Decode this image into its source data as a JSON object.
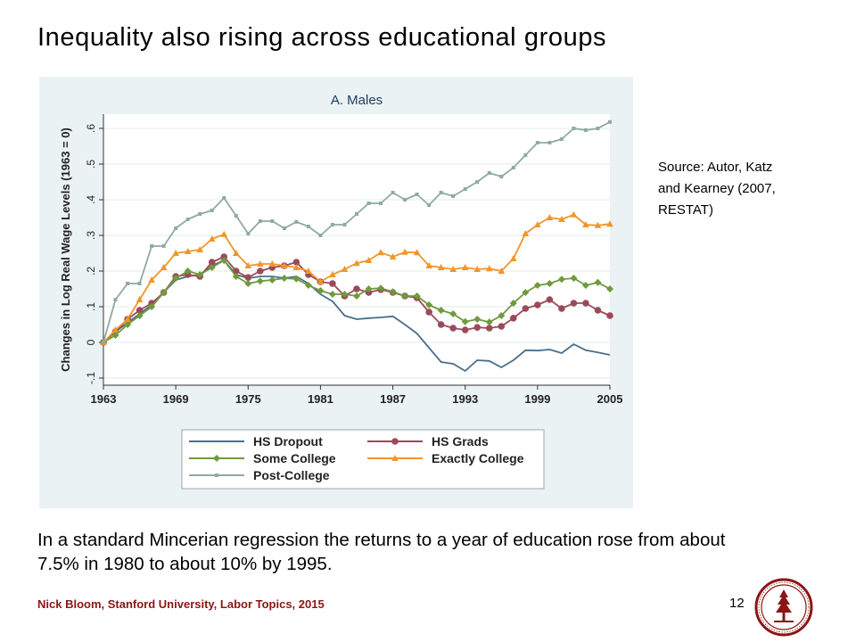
{
  "slide": {
    "title": "Inequality also rising across educational groups",
    "source_note": "Source: Autor, Katz\nand Kearney (2007,\nRESTAT)",
    "body_text": "In a standard Mincerian regression the returns to a year of education rose from about 7.5% in 1980 to about 10% by 1995.",
    "footer": "Nick Bloom, Stanford University, Labor Topics, 2015",
    "page_number": "12"
  },
  "colors": {
    "plot_background": "#ffffff",
    "panel_background": "#eaf2f3",
    "grid": "#e2ebec",
    "axis_text": "#222222",
    "title_text": "#1e3a5f",
    "stanford_red": "#8c1515"
  },
  "chart_data": {
    "type": "line",
    "title": "A. Males",
    "xlabel": "",
    "ylabel": "Changes in Log Real Wage Levels (1963 = 0)",
    "xlim": [
      1963,
      2005
    ],
    "ylim": [
      -0.12,
      0.64
    ],
    "x_ticks": [
      1963,
      1969,
      1975,
      1981,
      1987,
      1993,
      1999,
      2005
    ],
    "x_tick_labels": [
      "1963",
      "1969",
      "1975",
      "1981",
      "1987",
      "1993",
      "1999",
      "2005"
    ],
    "y_ticks": [
      -0.1,
      0,
      0.1,
      0.2,
      0.3,
      0.4,
      0.5,
      0.6
    ],
    "y_tick_labels": [
      "-.1",
      "0",
      ".1",
      ".2",
      ".3",
      ".4",
      ".5",
      ".6"
    ],
    "grid": "horizontal",
    "legend_position": "bottom",
    "x": [
      1963,
      1964,
      1965,
      1966,
      1967,
      1968,
      1969,
      1970,
      1971,
      1972,
      1973,
      1974,
      1975,
      1976,
      1977,
      1978,
      1979,
      1980,
      1981,
      1982,
      1983,
      1984,
      1985,
      1986,
      1987,
      1988,
      1989,
      1990,
      1991,
      1992,
      1993,
      1994,
      1995,
      1996,
      1997,
      1998,
      1999,
      2000,
      2001,
      2002,
      2003,
      2004,
      2005
    ],
    "series": [
      {
        "name": "HS Dropout",
        "color": "#4a6e8c",
        "marker": "none",
        "values": [
          0,
          0.03,
          0.055,
          0.08,
          0.105,
          0.14,
          0.175,
          0.185,
          0.19,
          0.215,
          0.23,
          0.19,
          0.18,
          0.185,
          0.185,
          0.18,
          0.185,
          0.165,
          0.135,
          0.115,
          0.075,
          0.065,
          0.068,
          0.07,
          0.073,
          0.05,
          0.025,
          -0.015,
          -0.055,
          -0.06,
          -0.08,
          -0.05,
          -0.052,
          -0.07,
          -0.05,
          -0.022,
          -0.023,
          -0.02,
          -0.03,
          -0.005,
          -0.022,
          -0.028,
          -0.035
        ]
      },
      {
        "name": "HS Grads",
        "color": "#9c4a5a",
        "marker": "circle",
        "values": [
          0,
          0.03,
          0.065,
          0.09,
          0.11,
          0.14,
          0.185,
          0.19,
          0.185,
          0.225,
          0.24,
          0.2,
          0.182,
          0.2,
          0.21,
          0.215,
          0.225,
          0.19,
          0.17,
          0.165,
          0.13,
          0.15,
          0.14,
          0.148,
          0.14,
          0.13,
          0.125,
          0.085,
          0.05,
          0.04,
          0.035,
          0.042,
          0.04,
          0.045,
          0.068,
          0.095,
          0.105,
          0.12,
          0.095,
          0.11,
          0.11,
          0.09,
          0.075
        ]
      },
      {
        "name": "Some College",
        "color": "#6f9a3e",
        "marker": "diamond",
        "values": [
          0,
          0.02,
          0.05,
          0.075,
          0.1,
          0.14,
          0.18,
          0.2,
          0.19,
          0.21,
          0.23,
          0.185,
          0.165,
          0.172,
          0.175,
          0.18,
          0.178,
          0.16,
          0.145,
          0.135,
          0.135,
          0.13,
          0.15,
          0.152,
          0.142,
          0.13,
          0.13,
          0.105,
          0.09,
          0.08,
          0.058,
          0.065,
          0.057,
          0.075,
          0.11,
          0.14,
          0.16,
          0.165,
          0.177,
          0.18,
          0.16,
          0.168,
          0.15
        ]
      },
      {
        "name": "Exactly College",
        "color": "#f0962a",
        "marker": "triangle",
        "values": [
          0,
          0.035,
          0.065,
          0.12,
          0.175,
          0.21,
          0.25,
          0.255,
          0.26,
          0.29,
          0.303,
          0.25,
          0.215,
          0.22,
          0.22,
          0.215,
          0.21,
          0.2,
          0.17,
          0.19,
          0.205,
          0.222,
          0.23,
          0.252,
          0.24,
          0.253,
          0.252,
          0.215,
          0.21,
          0.205,
          0.21,
          0.205,
          0.207,
          0.2,
          0.235,
          0.305,
          0.33,
          0.35,
          0.345,
          0.358,
          0.33,
          0.328,
          0.332
        ]
      },
      {
        "name": "Post-College",
        "color": "#8eaba0",
        "marker": "square",
        "values": [
          0,
          0.12,
          0.165,
          0.165,
          0.27,
          0.27,
          0.32,
          0.345,
          0.36,
          0.37,
          0.405,
          0.355,
          0.305,
          0.34,
          0.34,
          0.32,
          0.338,
          0.325,
          0.3,
          0.33,
          0.33,
          0.36,
          0.39,
          0.39,
          0.42,
          0.4,
          0.415,
          0.385,
          0.42,
          0.41,
          0.43,
          0.45,
          0.475,
          0.465,
          0.49,
          0.525,
          0.56,
          0.56,
          0.57,
          0.6,
          0.595,
          0.6,
          0.618
        ]
      }
    ]
  }
}
